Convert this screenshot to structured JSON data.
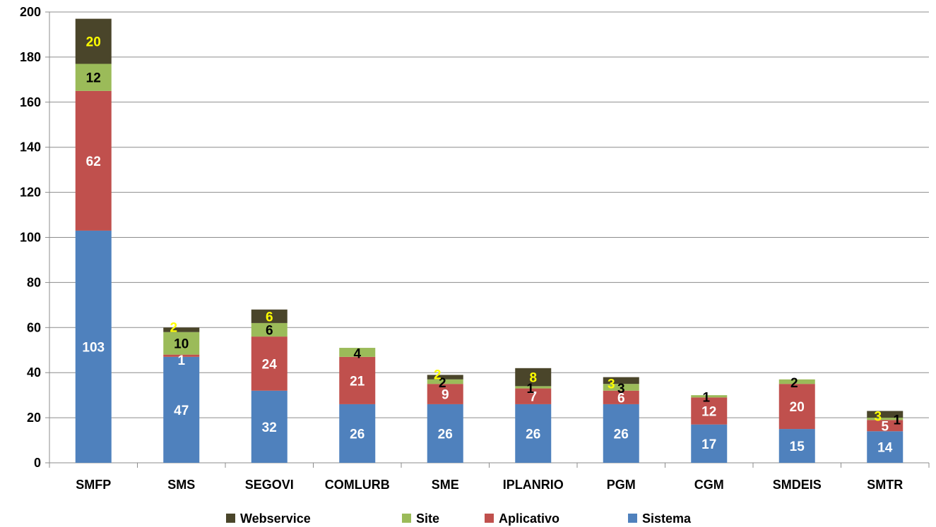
{
  "chart_data": {
    "type": "bar",
    "stacked": true,
    "title": "",
    "xlabel": "",
    "ylabel": "",
    "ylim": [
      0,
      200
    ],
    "yticks": [
      0,
      20,
      40,
      60,
      80,
      100,
      120,
      140,
      160,
      180,
      200
    ],
    "grid": true,
    "legend_position": "bottom",
    "categories": [
      "SMFP",
      "SMS",
      "SEGOVI",
      "COMLURB",
      "SME",
      "IPLANRIO",
      "PGM",
      "CGM",
      "SMDEIS",
      "SMTR"
    ],
    "series": [
      {
        "name": "Sistema",
        "color": "#4F81BD",
        "label_color": "#FFFFFF",
        "values": [
          103,
          47,
          32,
          26,
          26,
          26,
          26,
          17,
          15,
          14
        ]
      },
      {
        "name": "Aplicativo",
        "color": "#C0504D",
        "label_color": "#FFFFFF",
        "values": [
          62,
          1,
          24,
          21,
          9,
          7,
          6,
          12,
          20,
          5
        ]
      },
      {
        "name": "Site",
        "color": "#9BBB59",
        "label_color": "#000000",
        "values": [
          12,
          10,
          6,
          4,
          2,
          1,
          3,
          1,
          2,
          1
        ]
      },
      {
        "name": "Webservice",
        "color": "#4A452A",
        "label_color": "#FFFF00",
        "values": [
          20,
          2,
          6,
          0,
          2,
          8,
          3,
          0,
          0,
          3
        ]
      }
    ],
    "legend_order": [
      "Webservice",
      "Site",
      "Aplicativo",
      "Sistema"
    ]
  }
}
